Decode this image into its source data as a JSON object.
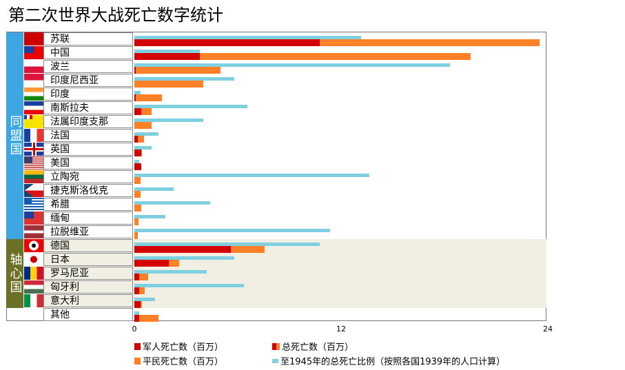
{
  "title": "第二次世界大战死亡数字统计",
  "groups": [
    {
      "label": "同盟国",
      "color": "#3ea6e0",
      "from": 0,
      "to": 14
    },
    {
      "label": "轴心国",
      "color": "#6b7228",
      "from": 15,
      "to": 19
    }
  ],
  "colors": {
    "military": "#d40000",
    "civilian": "#ff8027",
    "ratio": "#7ecfdf",
    "axis_bg": "#f1efe3"
  },
  "chart_data": {
    "type": "bar",
    "orientation": "horizontal",
    "title": "第二次世界大战死亡数字统计",
    "categories": [
      "苏联",
      "中国",
      "波兰",
      "印度尼西亚",
      "印度",
      "南斯拉夫",
      "法属印度支那",
      "法国",
      "英国",
      "美国",
      "立陶宛",
      "捷克斯洛伐克",
      "希腊",
      "缅甸",
      "拉脱维亚",
      "德国",
      "日本",
      "罗马尼亚",
      "匈牙利",
      "意大利",
      "其他"
    ],
    "xlim": [
      0,
      24
    ],
    "xticks": [
      "0",
      "12",
      "24"
    ],
    "series": [
      {
        "name": "军人死亡数（百万）",
        "values": [
          10.8,
          3.8,
          0.1,
          0,
          0.1,
          0.4,
          0,
          0.2,
          0.4,
          0.4,
          0,
          0,
          0,
          0,
          0,
          5.6,
          2.0,
          0.3,
          0.3,
          0.35,
          0.3
        ]
      },
      {
        "name": "总死亡数（百万）",
        "values": [
          23.6,
          19.6,
          5.0,
          4.0,
          1.6,
          1.0,
          1.0,
          0.56,
          0.45,
          0.42,
          0.37,
          0.35,
          0.4,
          0.25,
          0.2,
          7.6,
          2.6,
          0.8,
          0.6,
          0.45,
          1.4
        ]
      },
      {
        "name": "平民死亡数（百万）",
        "values": [
          12.8,
          15.8,
          4.9,
          4.0,
          1.5,
          0.6,
          1.0,
          0.36,
          0.05,
          0.02,
          0.37,
          0.35,
          0.4,
          0.25,
          0.2,
          2.0,
          0.6,
          0.5,
          0.3,
          0.1,
          1.1
        ]
      },
      {
        "name": "至1945年的总死亡比例（按照各国1939年的人口计算）",
        "values": [
          13.2,
          3.8,
          18.4,
          5.8,
          0.36,
          6.6,
          4.0,
          1.4,
          1.0,
          0.3,
          13.7,
          2.3,
          4.4,
          1.8,
          11.4,
          10.8,
          5.8,
          4.2,
          6.4,
          1.2,
          0.3
        ]
      }
    ],
    "legend": [
      "军人死亡数（百万）",
      "总死亡数（百万）",
      "平民死亡数（百万）",
      "至1945年的总死亡比例（按照各国1939年的人口计算）"
    ],
    "legend_position": "bottom",
    "grid": false
  },
  "flags": [
    "ussr",
    "roc",
    "poland",
    "indonesia",
    "india",
    "yugoslavia",
    "indochina",
    "france",
    "uk",
    "usa",
    "lithuania",
    "czech",
    "greece",
    "burma",
    "latvia",
    "germany",
    "japan",
    "romania",
    "hungary",
    "italy",
    ""
  ]
}
